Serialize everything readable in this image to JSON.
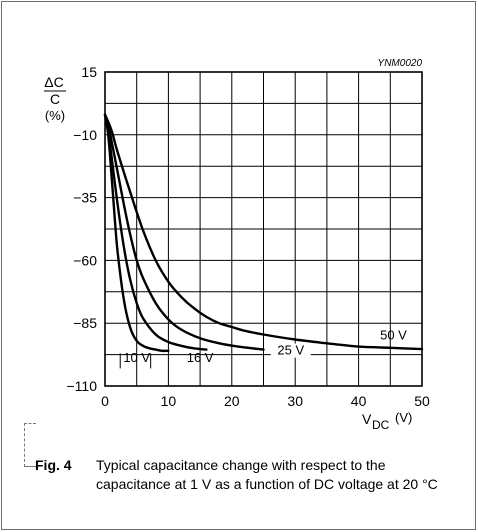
{
  "figure_code": "YNM0020",
  "caption": {
    "label": "Fig. 4",
    "text": "Typical capacitance change with respect to the capacitance at 1 V as a function of DC voltage at 20 °C"
  },
  "chart_data": {
    "type": "line",
    "ylabel_top": "ΔC",
    "ylabel_bottom": "C",
    "ylabel_unit": "(%)",
    "xlabel_main": "V",
    "xlabel_sub": "DC",
    "xlabel_unit": "(V)",
    "xlim": [
      0,
      50
    ],
    "ylim": [
      -110,
      15
    ],
    "x_ticks": [
      0,
      10,
      20,
      30,
      40,
      50
    ],
    "y_ticks": [
      15,
      -10,
      -35,
      -60,
      -85,
      -110
    ],
    "grid": true,
    "series": [
      {
        "name": "10 V",
        "x": [
          0,
          0.5,
          1,
          1.5,
          2,
          3,
          4,
          5,
          6,
          7,
          8,
          9,
          10
        ],
        "y": [
          -2,
          -10,
          -25,
          -42,
          -57,
          -76,
          -87,
          -92,
          -94,
          -95,
          -95.5,
          -96,
          -96
        ]
      },
      {
        "name": "16 V",
        "x": [
          0,
          0.5,
          1,
          2,
          3,
          4,
          5,
          6,
          8,
          10,
          12,
          14,
          16
        ],
        "y": [
          -2,
          -8,
          -18,
          -38,
          -55,
          -68,
          -77,
          -83,
          -89.5,
          -92.5,
          -94,
          -95,
          -95.5
        ]
      },
      {
        "name": "25 V",
        "x": [
          0,
          0.5,
          1,
          2,
          3,
          4,
          5,
          6,
          8,
          10,
          12,
          15,
          18,
          21,
          25
        ],
        "y": [
          -2,
          -6,
          -12,
          -25,
          -38,
          -50,
          -60,
          -67,
          -77,
          -83.5,
          -87.5,
          -91,
          -93,
          -94.3,
          -95.5
        ]
      },
      {
        "name": "50 V",
        "x": [
          0,
          1,
          2,
          4,
          6,
          8,
          10,
          12,
          14,
          16,
          18,
          20,
          22,
          25,
          30,
          35,
          40,
          45,
          50
        ],
        "y": [
          -2,
          -8,
          -17,
          -33,
          -48,
          -60,
          -68.5,
          -74.5,
          -79,
          -82.5,
          -85,
          -86.5,
          -88,
          -89.5,
          -91.5,
          -93,
          -94.3,
          -94.8,
          -95.3
        ]
      }
    ],
    "curve_labels": [
      "10 V",
      "16 V",
      "25 V",
      "50 V"
    ]
  }
}
